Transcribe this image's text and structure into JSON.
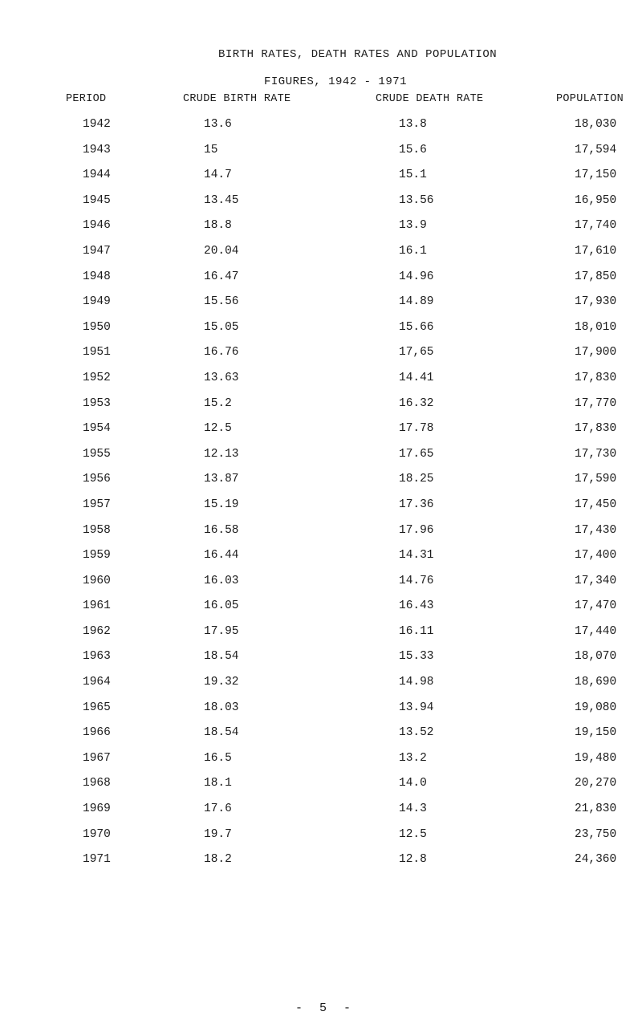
{
  "title": {
    "line1": "BIRTH RATES, DEATH RATES AND POPULATION",
    "line2": "FIGURES, 1942 - 1971"
  },
  "headers": {
    "period": "PERIOD",
    "birth_rate": "CRUDE BIRTH RATE",
    "death_rate": "CRUDE DEATH RATE",
    "population": "POPULATION"
  },
  "rows": [
    {
      "year": "1942",
      "birth": "13.6",
      "death": "13.8",
      "population": "18,030"
    },
    {
      "year": "1943",
      "birth": "15",
      "death": "15.6",
      "population": "17,594"
    },
    {
      "year": "1944",
      "birth": "14.7",
      "death": "15.1",
      "population": "17,150"
    },
    {
      "year": "1945",
      "birth": "13.45",
      "death": "13.56",
      "population": "16,950"
    },
    {
      "year": "1946",
      "birth": "18.8",
      "death": "13.9",
      "population": "17,740"
    },
    {
      "year": "1947",
      "birth": "20.04",
      "death": "16.1",
      "population": "17,610"
    },
    {
      "year": "1948",
      "birth": "16.47",
      "death": "14.96",
      "population": "17,850"
    },
    {
      "year": "1949",
      "birth": "15.56",
      "death": "14.89",
      "population": "17,930"
    },
    {
      "year": "1950",
      "birth": "15.05",
      "death": "15.66",
      "population": "18,010"
    },
    {
      "year": "1951",
      "birth": "16.76",
      "death": "17,65",
      "population": "17,900"
    },
    {
      "year": "1952",
      "birth": "13.63",
      "death": "14.41",
      "population": "17,830"
    },
    {
      "year": "1953",
      "birth": "15.2",
      "death": "16.32",
      "population": "17,770"
    },
    {
      "year": "1954",
      "birth": "12.5",
      "death": "17.78",
      "population": "17,830"
    },
    {
      "year": "1955",
      "birth": "12.13",
      "death": "17.65",
      "population": "17,730"
    },
    {
      "year": "1956",
      "birth": "13.87",
      "death": "18.25",
      "population": "17,590"
    },
    {
      "year": "1957",
      "birth": "15.19",
      "death": "17.36",
      "population": "17,450"
    },
    {
      "year": "1958",
      "birth": "16.58",
      "death": "17.96",
      "population": "17,430"
    },
    {
      "year": "1959",
      "birth": "16.44",
      "death": "14.31",
      "population": "17,400"
    },
    {
      "year": "1960",
      "birth": "16.03",
      "death": "14.76",
      "population": "17,340"
    },
    {
      "year": "1961",
      "birth": "16.05",
      "death": "16.43",
      "population": "17,470"
    },
    {
      "year": "1962",
      "birth": "17.95",
      "death": "16.11",
      "population": "17,440"
    },
    {
      "year": "1963",
      "birth": "18.54",
      "death": "15.33",
      "population": "18,070"
    },
    {
      "year": "1964",
      "birth": "19.32",
      "death": "14.98",
      "population": "18,690"
    },
    {
      "year": "1965",
      "birth": "18.03",
      "death": "13.94",
      "population": "19,080"
    },
    {
      "year": "1966",
      "birth": "18.54",
      "death": "13.52",
      "population": "19,150"
    },
    {
      "year": "1967",
      "birth": "16.5",
      "death": "13.2",
      "population": "19,480"
    },
    {
      "year": "1968",
      "birth": "18.1",
      "death": "14.0",
      "population": "20,270"
    },
    {
      "year": "1969",
      "birth": "17.6",
      "death": "14.3",
      "population": "21,830"
    },
    {
      "year": "1970",
      "birth": "19.7",
      "death": "12.5",
      "population": "23,750"
    },
    {
      "year": "1971",
      "birth": "18.2",
      "death": "12.8",
      "population": "24,360"
    }
  ],
  "footer": {
    "page_number": "- 5 -"
  }
}
